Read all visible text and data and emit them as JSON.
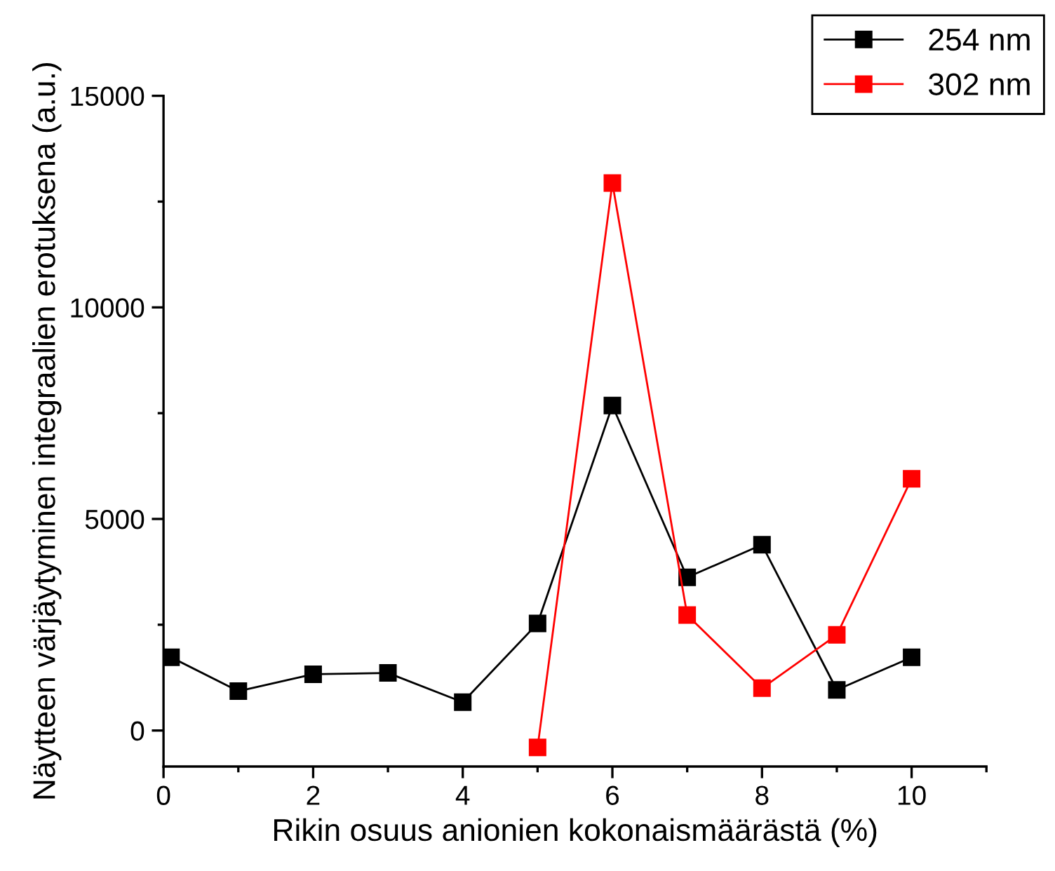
{
  "chart_data": {
    "type": "line",
    "xlabel": "Rikin osuus anionien kokonaismäärästä (%)",
    "ylabel": "Näytteen värjäytyminen integraalien erotuksena (a.u.)",
    "xlim": [
      0,
      11
    ],
    "xticks": [
      0,
      2,
      4,
      6,
      8,
      10
    ],
    "ylim": [
      -850,
      15000
    ],
    "yticks": [
      0,
      5000,
      10000,
      15000
    ],
    "marker": "square",
    "grid": false,
    "legend": "top right",
    "series": [
      {
        "name": "254 nm",
        "color": "#000000",
        "x": [
          0.1,
          1,
          2,
          3,
          4,
          5,
          6,
          7,
          8,
          9,
          10
        ],
        "values": [
          1730,
          930,
          1330,
          1360,
          670,
          2530,
          7680,
          3620,
          4390,
          960,
          1730
        ]
      },
      {
        "name": "302 nm",
        "color": "#ff0000",
        "x": [
          5,
          6,
          7,
          8,
          9,
          10
        ],
        "values": [
          -400,
          12940,
          2730,
          1000,
          2260,
          5950
        ]
      }
    ]
  }
}
